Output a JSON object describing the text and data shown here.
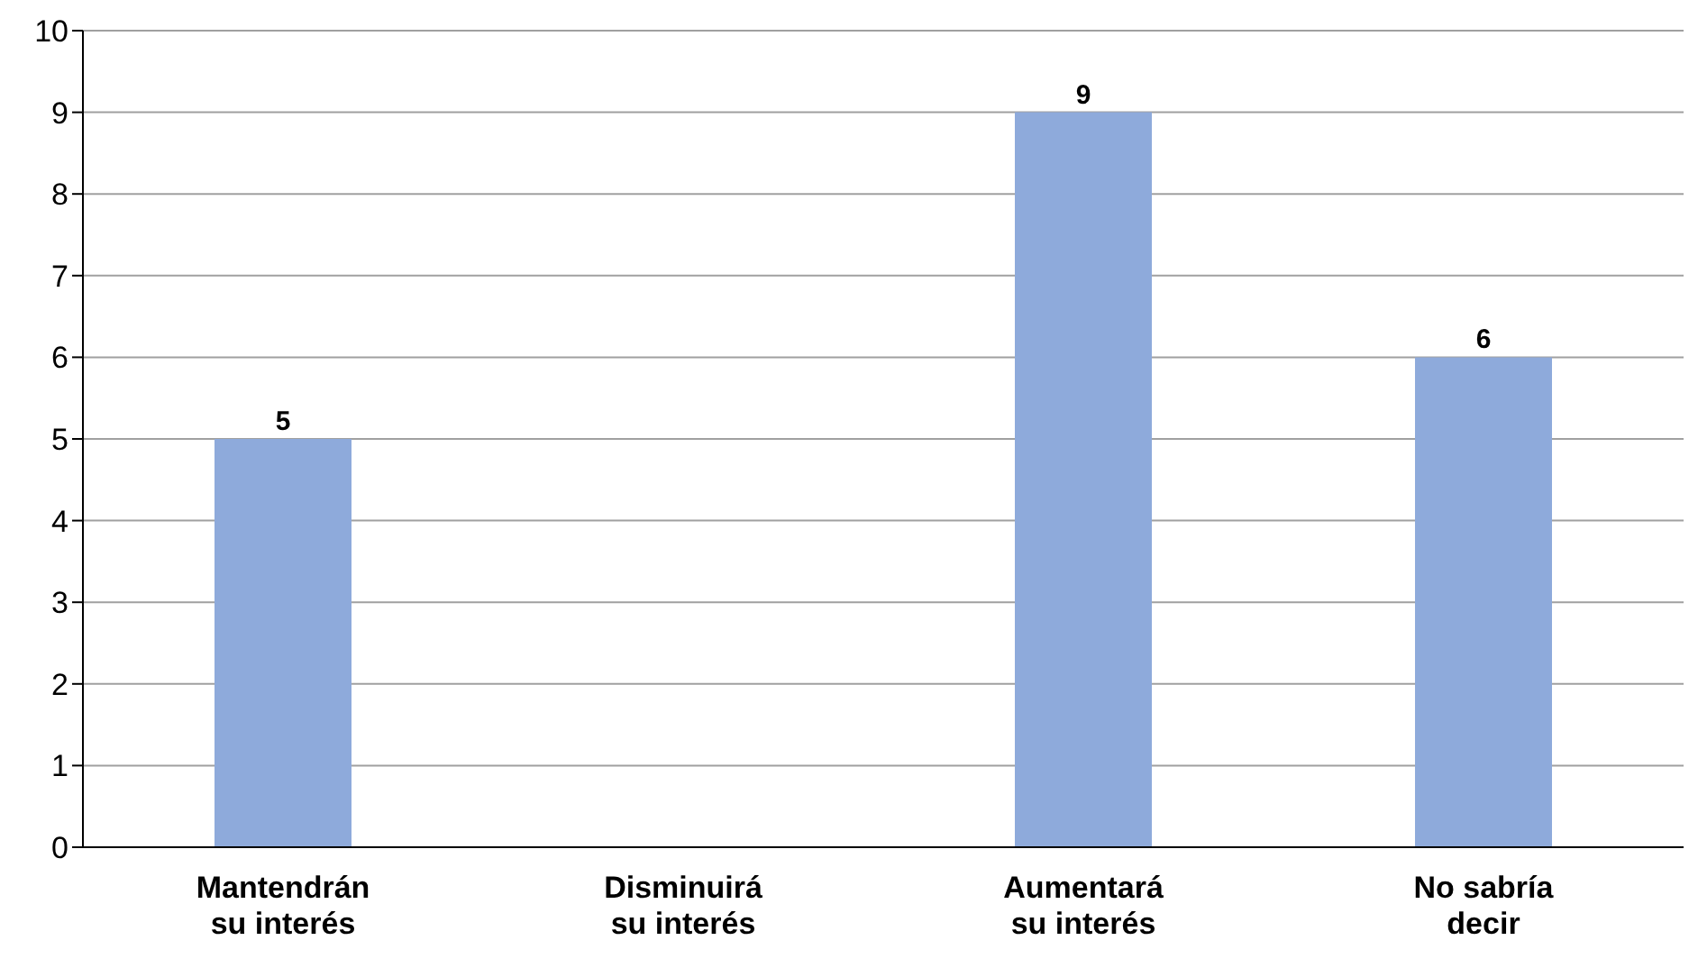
{
  "chart_data": {
    "type": "bar",
    "categories": [
      "Mantendrán su interés",
      "Disminuirá su interés",
      "Aumentará su interés",
      "No sabría decir"
    ],
    "values": [
      5,
      0,
      9,
      6
    ],
    "value_labels": [
      "5",
      null,
      "9",
      "6"
    ],
    "color": "#8eaadb",
    "ylim": [
      0,
      10
    ],
    "yticks": [
      0,
      1,
      2,
      3,
      4,
      5,
      6,
      7,
      8,
      9,
      10
    ],
    "grid": "y"
  }
}
